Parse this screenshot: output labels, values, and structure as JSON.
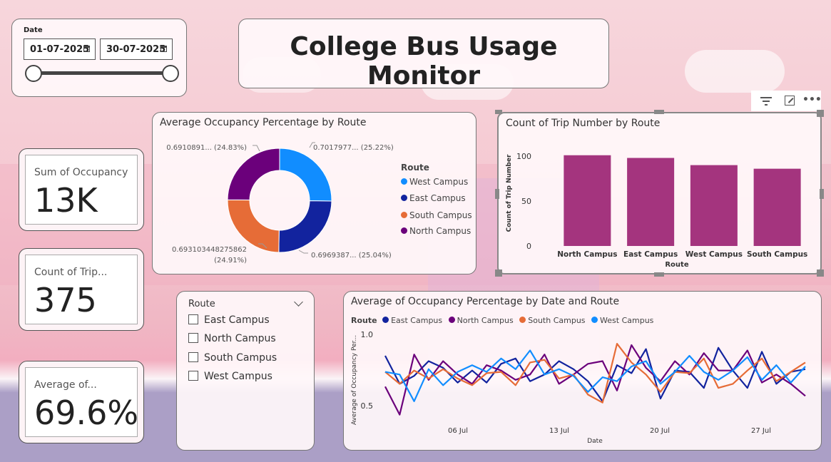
{
  "app_title": "College Bus Usage Monitor",
  "date_slicer": {
    "label": "Date",
    "start": "01-07-2025",
    "end": "30-07-2025"
  },
  "kpis": [
    {
      "label": "Sum of Occupancy",
      "value": "13K"
    },
    {
      "label": "Count of Trip...",
      "value": "375"
    },
    {
      "label": "Average of...",
      "value": "69.6%"
    }
  ],
  "route_slicer": {
    "title": "Route",
    "items": [
      {
        "label": "East Campus",
        "checked": false
      },
      {
        "label": "North Campus",
        "checked": false
      },
      {
        "label": "South Campus",
        "checked": false
      },
      {
        "label": "West Campus",
        "checked": false
      }
    ]
  },
  "visual_header_icons": [
    "filter-icon",
    "focus-mode-icon",
    "more-options-icon"
  ],
  "charts": {
    "donut": {
      "title": "Average Occupancy Percentage by Route",
      "legend_title": "Route",
      "slice_labels": [
        "0.7017977... (25.22%)",
        "0.6969387... (25.04%)",
        "0.693103448275862",
        "(24.91%)",
        "0.6910891... (24.83%)"
      ]
    },
    "bar": {
      "title": "Count of Trip Number by Route",
      "xlabel": "Route",
      "ylabel": "Count of Trip Number",
      "ticks": [
        "100",
        "50",
        "0"
      ]
    },
    "line": {
      "title": "Average of Occupancy Percentage by Date and Route",
      "legend_title": "Route",
      "xlabel": "Date",
      "ylabel": "Average of Occupancy Per...",
      "yticks": [
        "1.0",
        "0.5"
      ],
      "xticks": [
        "06 Jul",
        "13 Jul",
        "20 Jul",
        "27 Jul"
      ]
    }
  },
  "chart_data": [
    {
      "type": "pie",
      "title": "Average Occupancy Percentage by Route",
      "legend_title": "Route",
      "categories": [
        "West Campus",
        "East Campus",
        "South Campus",
        "North Campus"
      ],
      "values": [
        0.7017977,
        0.6969387,
        0.693103448275862,
        0.6910891
      ],
      "percents": [
        25.22,
        25.04,
        24.91,
        24.83
      ],
      "colors": [
        "#118dff",
        "#12239e",
        "#e66c37",
        "#6b007b"
      ],
      "legend_position": "right"
    },
    {
      "type": "bar",
      "title": "Count of Trip Number by Route",
      "categories": [
        "North Campus",
        "East Campus",
        "West Campus",
        "South Campus"
      ],
      "values": [
        101,
        98,
        90,
        86
      ],
      "xlabel": "Route",
      "ylabel": "Count of Trip Number",
      "ylim": [
        0,
        100
      ],
      "color": "#a4347e"
    },
    {
      "type": "line",
      "title": "Average of Occupancy Percentage by Date and Route",
      "legend_title": "Route",
      "x": [
        "2025-07-01",
        "2025-07-02",
        "2025-07-03",
        "2025-07-04",
        "2025-07-05",
        "2025-07-06",
        "2025-07-07",
        "2025-07-08",
        "2025-07-09",
        "2025-07-10",
        "2025-07-11",
        "2025-07-12",
        "2025-07-13",
        "2025-07-14",
        "2025-07-15",
        "2025-07-16",
        "2025-07-17",
        "2025-07-18",
        "2025-07-19",
        "2025-07-20",
        "2025-07-21",
        "2025-07-22",
        "2025-07-23",
        "2025-07-24",
        "2025-07-25",
        "2025-07-26",
        "2025-07-27",
        "2025-07-28",
        "2025-07-29",
        "2025-07-30"
      ],
      "series": [
        {
          "name": "East Campus",
          "color": "#12239e",
          "values": [
            0.84,
            0.63,
            0.69,
            0.8,
            0.75,
            0.64,
            0.73,
            0.64,
            0.78,
            0.82,
            0.65,
            0.7,
            0.8,
            0.74,
            0.65,
            0.5,
            0.77,
            0.71,
            0.89,
            0.52,
            0.73,
            0.72,
            0.6,
            0.9,
            0.73,
            0.6,
            0.87,
            0.63,
            0.72,
            0.74
          ]
        },
        {
          "name": "North Campus",
          "color": "#6b007b",
          "values": [
            0.61,
            0.4,
            0.85,
            0.66,
            0.8,
            0.7,
            0.63,
            0.77,
            0.73,
            0.66,
            0.7,
            0.85,
            0.63,
            0.7,
            0.78,
            0.8,
            0.58,
            0.92,
            0.75,
            0.65,
            0.8,
            0.7,
            0.86,
            0.73,
            0.73,
            0.88,
            0.64,
            0.7,
            0.63,
            0.54
          ]
        },
        {
          "name": "South Campus",
          "color": "#e66c37",
          "values": [
            0.72,
            0.63,
            0.73,
            0.67,
            0.74,
            0.67,
            0.62,
            0.71,
            0.72,
            0.62,
            0.79,
            0.81,
            0.67,
            0.7,
            0.55,
            0.49,
            0.93,
            0.79,
            0.7,
            0.57,
            0.72,
            0.71,
            0.82,
            0.6,
            0.63,
            0.73,
            0.82,
            0.65,
            0.72,
            0.79
          ]
        },
        {
          "name": "West Campus",
          "color": "#118dff",
          "values": [
            0.72,
            0.7,
            0.5,
            0.74,
            0.62,
            0.72,
            0.77,
            0.72,
            0.82,
            0.74,
            0.88,
            0.7,
            0.74,
            0.69,
            0.57,
            0.68,
            0.65,
            0.76,
            0.8,
            0.63,
            0.72,
            0.84,
            0.72,
            0.66,
            0.73,
            0.83,
            0.66,
            0.77,
            0.64,
            0.76
          ]
        }
      ],
      "xlabel": "Date",
      "ylabel": "Average of Occupancy Per...",
      "ylim": [
        0.35,
        1.0
      ],
      "legend_position": "top-left"
    }
  ]
}
